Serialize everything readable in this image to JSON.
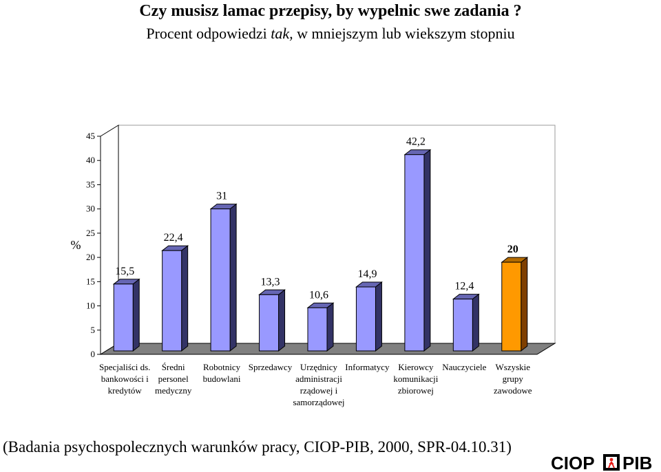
{
  "header": {
    "title": "Czy musisz lamac przepisy, by wypelnic swe zadania ?",
    "subtitle_pre": "Procent odpowiedzi ",
    "subtitle_italic": "tak,",
    "subtitle_post": " w mniejszym lub wiekszym stopniu"
  },
  "chart_data": {
    "type": "bar",
    "title": "",
    "xlabel": "",
    "ylabel": "%",
    "ylim": [
      0,
      45
    ],
    "yticks": [
      0,
      5,
      10,
      15,
      20,
      25,
      30,
      35,
      40,
      45
    ],
    "grid": false,
    "legend": "none",
    "categories": [
      [
        "Specjaliści ds.",
        "bankowości i",
        "kredytów"
      ],
      [
        "Średni",
        "personel",
        "medyczny"
      ],
      [
        "Robotnicy",
        "budowlani"
      ],
      [
        "Sprzedawcy"
      ],
      [
        "Urzędnicy",
        "administracji",
        "rządowej i",
        "samorządowej"
      ],
      [
        "Informatycy"
      ],
      [
        "Kierowcy",
        "komunikacji",
        "zbiorowej"
      ],
      [
        "Nauczyciele"
      ],
      [
        "Wszyskie",
        "grupy",
        "zawodowe"
      ]
    ],
    "values": [
      15.5,
      22.4,
      31,
      13.3,
      10.6,
      14.9,
      42.2,
      12.4,
      20
    ],
    "data_labels": [
      "15,5",
      "22,4",
      "31",
      "13,3",
      "10,6",
      "14,9",
      "42,2",
      "12,4",
      "20"
    ],
    "colors": {
      "bar_front": "#9999ff",
      "bar_side": "#333366",
      "bar_top": "#6666b3",
      "highlight_front": "#ff9900",
      "highlight_side": "#7f3f00",
      "highlight_top": "#b36b00",
      "floor": "#808080"
    }
  },
  "footer": {
    "source": "(Badania psychospolecznych warunków pracy, CIOP-PIB,  2000, SPR-04.10.31)",
    "logo_text": "CIOP PIB"
  }
}
